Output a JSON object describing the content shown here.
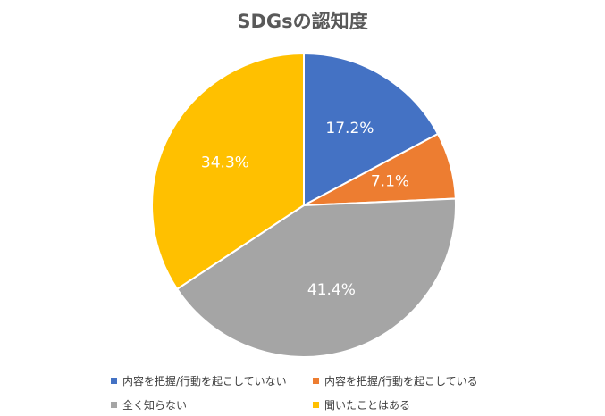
{
  "chart_data": {
    "type": "pie",
    "title": "SDGsの認知度",
    "slices": [
      {
        "label": "内容を把握/行動を起こしていない",
        "value": 17.2,
        "display": "17.2%",
        "color": "#4472C4"
      },
      {
        "label": "内容を把握/行動を起こしている",
        "value": 7.1,
        "display": "7.1%",
        "color": "#ED7D31"
      },
      {
        "label": "全く知らない",
        "value": 41.4,
        "display": "41.4%",
        "color": "#A5A5A5"
      },
      {
        "label": "聞いたことはある",
        "value": 34.3,
        "display": "34.3%",
        "color": "#FFC000"
      }
    ],
    "legend_position": "bottom"
  }
}
